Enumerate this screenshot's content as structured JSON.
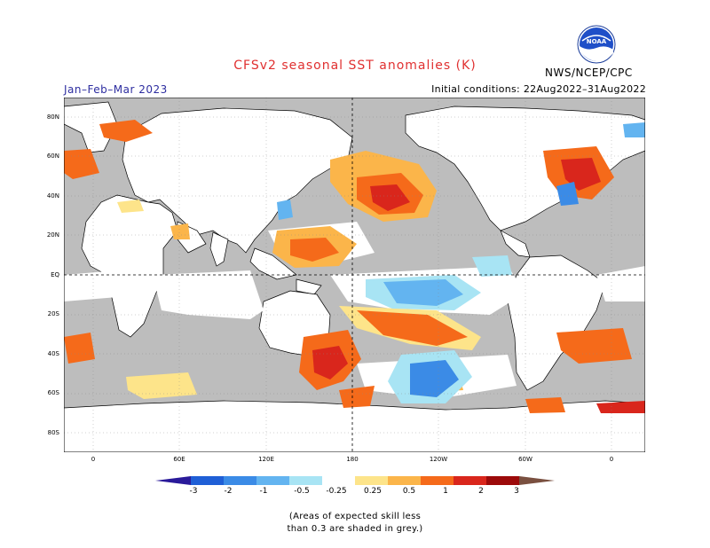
{
  "header": {
    "title": "CFSv2 seasonal SST anomalies (K)",
    "season": "Jan–Feb–Mar 2023",
    "initial_conditions": "Initial conditions: 22Aug2022–31Aug2022",
    "agency": "NWS/NCEP/CPC",
    "logo_text": "NOAA"
  },
  "map": {
    "lat_labels": [
      "80N",
      "60N",
      "40N",
      "20N",
      "EQ",
      "20S",
      "40S",
      "60S",
      "80S"
    ],
    "lon_labels": [
      "0",
      "60E",
      "120E",
      "180",
      "120W",
      "60W",
      "0"
    ]
  },
  "colorbar": {
    "tick_labels": [
      "-3",
      "-2",
      "-1",
      "-0.5",
      "-0.25",
      "0.25",
      "0.5",
      "1",
      "2",
      "3"
    ],
    "colors": [
      "#2a1a9a",
      "#1f5fd6",
      "#3b8be6",
      "#63b4f0",
      "#a8e4f4",
      "#ffffff",
      "#fde48a",
      "#fbb54a",
      "#f56a1a",
      "#d9261c",
      "#9c0a0a",
      "#7a5040"
    ]
  },
  "footnote": {
    "line1": "(Areas of expected skill less",
    "line2": "than 0.3 are shaded in grey.)"
  },
  "colors": {
    "skill_grey": "#bdbdbd",
    "title_red": "#e03030",
    "season_blue": "#2d2da0"
  }
}
